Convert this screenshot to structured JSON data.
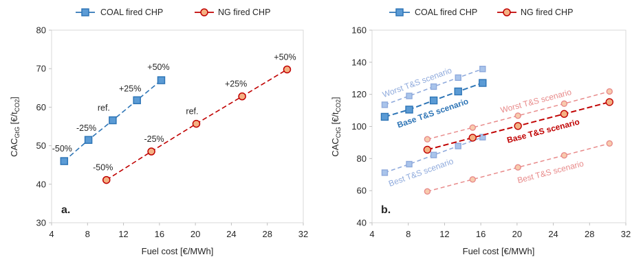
{
  "legend": {
    "coal": "COAL fired CHP",
    "ng": "NG fired CHP"
  },
  "colors": {
    "coal_line": "#2E75B6",
    "coal_fill": "#5B9BD5",
    "coal_light": "#8FAADC",
    "ng_line": "#C00000",
    "ng_fill": "#F4B183",
    "ng_light": "#E88A8A",
    "grid": "#D9D9D9",
    "text": "#262626"
  },
  "chart_data": [
    {
      "type": "line",
      "panel_label": "a.",
      "xlabel": "Fuel cost [€/MWh]",
      "ylabel": {
        "main": "CAC",
        "sub": "GtG",
        "unit_pre": " [€/t",
        "unit_sub": "CO2",
        "unit_post": "]"
      },
      "xlim": [
        4,
        32
      ],
      "ylim": [
        30,
        80
      ],
      "xticks": [
        4,
        8,
        12,
        16,
        20,
        24,
        28,
        32
      ],
      "yticks": [
        30,
        40,
        50,
        60,
        70,
        80
      ],
      "grid": "none",
      "legend_position": "top",
      "series": [
        {
          "name": "COAL fired CHP",
          "x": [
            5.4,
            8.1,
            10.8,
            13.5,
            16.2
          ],
          "y": [
            46.0,
            51.5,
            56.6,
            61.8,
            67.0
          ],
          "labels": [
            "-50%",
            "-25%",
            "ref.",
            "+25%",
            "+50%"
          ]
        },
        {
          "name": "NG fired CHP",
          "x": [
            10.1,
            15.1,
            20.1,
            25.2,
            30.2
          ],
          "y": [
            41.1,
            48.5,
            55.7,
            62.8,
            69.8
          ],
          "labels": [
            "-50%",
            "-25%",
            "ref.",
            "+25%",
            "+50%"
          ]
        }
      ]
    },
    {
      "type": "line",
      "panel_label": "b.",
      "xlabel": "Fuel cost [€/MWh]",
      "ylabel": {
        "main": "CAC",
        "sub": "CtG",
        "unit_pre": " [€/t",
        "unit_sub": "CO2",
        "unit_post": "]"
      },
      "xlim": [
        4,
        32
      ],
      "ylim": [
        40,
        160
      ],
      "xticks": [
        4,
        8,
        12,
        16,
        20,
        24,
        28,
        32
      ],
      "yticks": [
        40,
        60,
        80,
        100,
        120,
        140,
        160
      ],
      "grid": "none",
      "legend_position": "top",
      "series": [
        {
          "name": "COAL fired CHP",
          "fuel": "coal",
          "scenario": "Worst T&S scenario",
          "x": [
            5.4,
            8.1,
            10.8,
            13.5,
            16.2
          ],
          "y": [
            113.5,
            119.0,
            124.8,
            130.4,
            135.8
          ]
        },
        {
          "name": "COAL fired CHP",
          "fuel": "coal",
          "scenario": "Base T&S scenario",
          "x": [
            5.4,
            8.1,
            10.8,
            13.5,
            16.2
          ],
          "y": [
            106.0,
            110.5,
            116.2,
            121.8,
            127.1
          ]
        },
        {
          "name": "COAL fired CHP",
          "fuel": "coal",
          "scenario": "Best T&S scenario",
          "x": [
            5.4,
            8.1,
            10.8,
            13.5,
            16.2
          ],
          "y": [
            71.2,
            76.5,
            82.2,
            87.8,
            93.3
          ]
        },
        {
          "name": "NG fired CHP",
          "fuel": "ng",
          "scenario": "Worst T&S scenario",
          "x": [
            10.1,
            15.1,
            20.1,
            25.2,
            30.2
          ],
          "y": [
            92.0,
            99.3,
            106.7,
            114.2,
            121.8
          ]
        },
        {
          "name": "NG fired CHP",
          "fuel": "ng",
          "scenario": "Base T&S scenario",
          "x": [
            10.1,
            15.1,
            20.1,
            25.2,
            30.2
          ],
          "y": [
            85.5,
            93.0,
            100.3,
            107.8,
            115.2
          ]
        },
        {
          "name": "NG fired CHP",
          "fuel": "ng",
          "scenario": "Best T&S scenario",
          "x": [
            10.1,
            15.1,
            20.1,
            25.2,
            30.2
          ],
          "y": [
            59.5,
            67.0,
            74.5,
            82.0,
            89.4
          ]
        }
      ]
    }
  ]
}
